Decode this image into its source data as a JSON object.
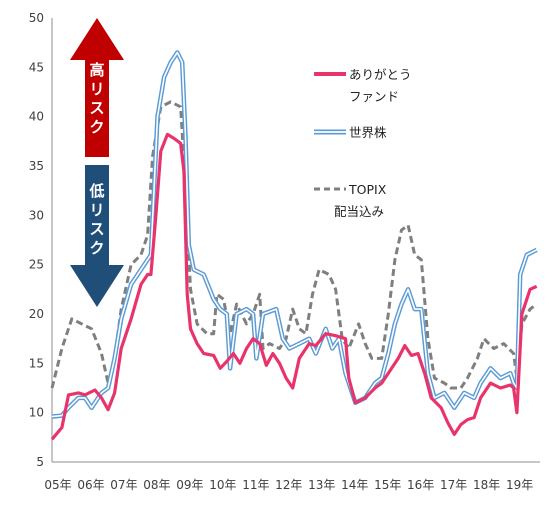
{
  "chart_data": {
    "type": "line",
    "x": [
      "05年",
      "06年",
      "07年",
      "08年",
      "09年",
      "10年",
      "11年",
      "12年",
      "13年",
      "14年",
      "15年",
      "16年",
      "17年",
      "18年",
      "19年"
    ],
    "ylim": [
      5,
      50
    ],
    "yticks": [
      5,
      10,
      15,
      20,
      25,
      30,
      35,
      40,
      45,
      50
    ],
    "grid": false,
    "series": [
      {
        "name": "ありがとうファンド",
        "name_lines": [
          "ありがとう",
          "ファンド"
        ],
        "color": "#E8336B",
        "style": "solid",
        "points": [
          [
            2005.0,
            7.3
          ],
          [
            2005.3,
            8.5
          ],
          [
            2005.5,
            11.8
          ],
          [
            2005.8,
            12.0
          ],
          [
            2006.0,
            11.8
          ],
          [
            2006.3,
            12.3
          ],
          [
            2006.5,
            11.5
          ],
          [
            2006.7,
            10.3
          ],
          [
            2006.9,
            12.0
          ],
          [
            2007.1,
            16.5
          ],
          [
            2007.4,
            19.5
          ],
          [
            2007.7,
            23.0
          ],
          [
            2007.9,
            24.0
          ],
          [
            2008.0,
            24.0
          ],
          [
            2008.15,
            30.0
          ],
          [
            2008.3,
            36.5
          ],
          [
            2008.5,
            38.2
          ],
          [
            2008.7,
            37.8
          ],
          [
            2008.9,
            37.3
          ],
          [
            2009.0,
            34.5
          ],
          [
            2009.1,
            22.0
          ],
          [
            2009.2,
            18.5
          ],
          [
            2009.4,
            17.0
          ],
          [
            2009.6,
            16.0
          ],
          [
            2009.9,
            15.8
          ],
          [
            2010.1,
            14.5
          ],
          [
            2010.3,
            15.2
          ],
          [
            2010.5,
            16.0
          ],
          [
            2010.7,
            15.0
          ],
          [
            2010.9,
            16.5
          ],
          [
            2011.1,
            17.5
          ],
          [
            2011.3,
            17.0
          ],
          [
            2011.5,
            14.8
          ],
          [
            2011.7,
            16.0
          ],
          [
            2011.9,
            15.0
          ],
          [
            2012.1,
            13.5
          ],
          [
            2012.3,
            12.5
          ],
          [
            2012.5,
            15.5
          ],
          [
            2012.8,
            17.0
          ],
          [
            2013.0,
            16.8
          ],
          [
            2013.3,
            18.0
          ],
          [
            2013.6,
            17.8
          ],
          [
            2013.9,
            17.5
          ],
          [
            2014.0,
            13.5
          ],
          [
            2014.2,
            11.0
          ],
          [
            2014.5,
            11.5
          ],
          [
            2014.8,
            12.5
          ],
          [
            2015.0,
            13.0
          ],
          [
            2015.2,
            14.0
          ],
          [
            2015.5,
            15.5
          ],
          [
            2015.7,
            16.8
          ],
          [
            2015.9,
            15.8
          ],
          [
            2016.1,
            16.0
          ],
          [
            2016.3,
            14.0
          ],
          [
            2016.5,
            11.5
          ],
          [
            2016.8,
            10.5
          ],
          [
            2017.0,
            9.0
          ],
          [
            2017.2,
            7.8
          ],
          [
            2017.4,
            8.8
          ],
          [
            2017.6,
            9.3
          ],
          [
            2017.8,
            9.5
          ],
          [
            2018.0,
            11.5
          ],
          [
            2018.3,
            13.0
          ],
          [
            2018.6,
            12.5
          ],
          [
            2018.9,
            12.8
          ],
          [
            2019.0,
            12.5
          ],
          [
            2019.1,
            10.0
          ],
          [
            2019.25,
            20.0
          ],
          [
            2019.5,
            22.5
          ],
          [
            2019.7,
            22.8
          ]
        ]
      },
      {
        "name": "世界株",
        "color": "#5B9BD5",
        "style": "double",
        "points": [
          [
            2005.0,
            9.6
          ],
          [
            2005.3,
            9.7
          ],
          [
            2005.5,
            10.5
          ],
          [
            2005.8,
            11.5
          ],
          [
            2006.0,
            11.5
          ],
          [
            2006.2,
            10.5
          ],
          [
            2006.5,
            12.0
          ],
          [
            2006.7,
            12.5
          ],
          [
            2006.9,
            15.5
          ],
          [
            2007.1,
            19.5
          ],
          [
            2007.4,
            23.0
          ],
          [
            2007.7,
            24.5
          ],
          [
            2008.0,
            26.0
          ],
          [
            2008.2,
            40.0
          ],
          [
            2008.4,
            44.0
          ],
          [
            2008.6,
            45.5
          ],
          [
            2008.8,
            46.5
          ],
          [
            2008.95,
            45.5
          ],
          [
            2009.05,
            38.0
          ],
          [
            2009.15,
            27.0
          ],
          [
            2009.3,
            24.5
          ],
          [
            2009.6,
            24.0
          ],
          [
            2009.9,
            21.5
          ],
          [
            2010.1,
            20.5
          ],
          [
            2010.3,
            20.0
          ],
          [
            2010.4,
            14.5
          ],
          [
            2010.6,
            20.0
          ],
          [
            2010.9,
            20.5
          ],
          [
            2011.1,
            20.0
          ],
          [
            2011.2,
            15.5
          ],
          [
            2011.4,
            20.0
          ],
          [
            2011.8,
            20.5
          ],
          [
            2012.0,
            17.5
          ],
          [
            2012.2,
            16.5
          ],
          [
            2012.5,
            17.0
          ],
          [
            2012.8,
            17.5
          ],
          [
            2013.0,
            16.0
          ],
          [
            2013.3,
            18.5
          ],
          [
            2013.5,
            16.5
          ],
          [
            2013.7,
            17.5
          ],
          [
            2013.9,
            14.0
          ],
          [
            2014.2,
            11.0
          ],
          [
            2014.5,
            11.5
          ],
          [
            2014.8,
            13.0
          ],
          [
            2015.0,
            13.5
          ],
          [
            2015.2,
            16.0
          ],
          [
            2015.4,
            19.0
          ],
          [
            2015.6,
            21.0
          ],
          [
            2015.8,
            22.5
          ],
          [
            2016.0,
            20.5
          ],
          [
            2016.2,
            20.5
          ],
          [
            2016.4,
            14.0
          ],
          [
            2016.6,
            11.5
          ],
          [
            2016.9,
            12.0
          ],
          [
            2017.2,
            10.5
          ],
          [
            2017.5,
            12.0
          ],
          [
            2017.8,
            11.5
          ],
          [
            2018.0,
            13.0
          ],
          [
            2018.3,
            14.5
          ],
          [
            2018.6,
            13.5
          ],
          [
            2018.9,
            14.0
          ],
          [
            2019.0,
            13.0
          ],
          [
            2019.1,
            12.5
          ],
          [
            2019.2,
            24.0
          ],
          [
            2019.4,
            26.0
          ],
          [
            2019.7,
            26.5
          ]
        ]
      },
      {
        "name": "TOPIX配当込み",
        "name_lines": [
          "TOPIX",
          "配当込み"
        ],
        "color": "#7F7F7F",
        "style": "dashed",
        "points": [
          [
            2005.0,
            12.5
          ],
          [
            2005.3,
            16.5
          ],
          [
            2005.6,
            19.5
          ],
          [
            2005.9,
            19.0
          ],
          [
            2006.2,
            18.5
          ],
          [
            2006.5,
            16.0
          ],
          [
            2006.7,
            13.0
          ],
          [
            2006.9,
            15.5
          ],
          [
            2007.1,
            20.5
          ],
          [
            2007.4,
            25.0
          ],
          [
            2007.7,
            26.0
          ],
          [
            2007.9,
            28.0
          ],
          [
            2008.05,
            36.0
          ],
          [
            2008.3,
            41.0
          ],
          [
            2008.6,
            41.5
          ],
          [
            2008.9,
            41.0
          ],
          [
            2009.05,
            33.0
          ],
          [
            2009.2,
            22.5
          ],
          [
            2009.4,
            19.0
          ],
          [
            2009.7,
            18.0
          ],
          [
            2009.9,
            18.0
          ],
          [
            2010.0,
            22.0
          ],
          [
            2010.2,
            21.5
          ],
          [
            2010.4,
            18.0
          ],
          [
            2010.6,
            21.0
          ],
          [
            2010.9,
            19.0
          ],
          [
            2011.1,
            20.0
          ],
          [
            2011.3,
            22.0
          ],
          [
            2011.4,
            16.5
          ],
          [
            2011.6,
            17.0
          ],
          [
            2011.9,
            16.5
          ],
          [
            2012.1,
            17.5
          ],
          [
            2012.3,
            20.5
          ],
          [
            2012.5,
            18.5
          ],
          [
            2012.7,
            18.0
          ],
          [
            2012.9,
            22.0
          ],
          [
            2013.1,
            24.5
          ],
          [
            2013.4,
            24.0
          ],
          [
            2013.6,
            22.5
          ],
          [
            2013.8,
            17.5
          ],
          [
            2014.0,
            16.5
          ],
          [
            2014.3,
            19.0
          ],
          [
            2014.5,
            17.0
          ],
          [
            2014.7,
            15.5
          ],
          [
            2015.0,
            15.5
          ],
          [
            2015.2,
            20.0
          ],
          [
            2015.4,
            25.5
          ],
          [
            2015.6,
            28.5
          ],
          [
            2015.8,
            29.0
          ],
          [
            2016.0,
            26.0
          ],
          [
            2016.2,
            25.5
          ],
          [
            2016.4,
            17.5
          ],
          [
            2016.6,
            13.5
          ],
          [
            2016.9,
            13.0
          ],
          [
            2017.1,
            12.5
          ],
          [
            2017.4,
            12.5
          ],
          [
            2017.6,
            13.5
          ],
          [
            2017.9,
            15.5
          ],
          [
            2018.1,
            17.5
          ],
          [
            2018.4,
            16.5
          ],
          [
            2018.7,
            17.0
          ],
          [
            2019.0,
            16.0
          ],
          [
            2019.1,
            13.5
          ],
          [
            2019.25,
            19.0
          ],
          [
            2019.5,
            20.5
          ],
          [
            2019.7,
            21.0
          ]
        ]
      }
    ]
  },
  "annotations": {
    "high_risk": "高リスク",
    "low_risk": "低リスク",
    "up_arrow_color": "#C00000",
    "down_arrow_color": "#1F4E79"
  }
}
